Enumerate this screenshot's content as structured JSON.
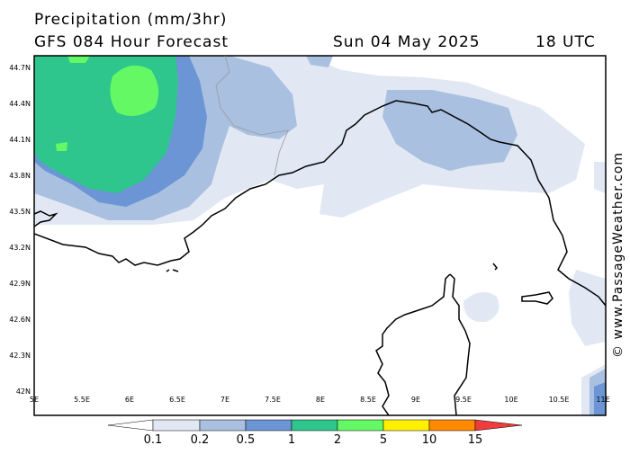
{
  "header": {
    "title": "Precipitation (mm/3hr)",
    "subtitle": "GFS 084 Hour Forecast",
    "date": "Sun 04 May 2025",
    "time": "18 UTC"
  },
  "axes": {
    "lat_ticks": [
      "44.7N",
      "44.4N",
      "44.1N",
      "43.8N",
      "43.5N",
      "43.2N",
      "42.9N",
      "42.6N",
      "42.3N",
      "42N"
    ],
    "lon_ticks": [
      "5E",
      "5.5E",
      "6E",
      "6.5E",
      "7E",
      "7.5E",
      "8E",
      "8.5E",
      "9E",
      "9.5E",
      "10E",
      "10.5E",
      "11E"
    ]
  },
  "credit": "© www.PassageWeather.com",
  "colorbar": {
    "labels": [
      "0.1",
      "0.2",
      "0.5",
      "1",
      "2",
      "5",
      "10",
      "15"
    ],
    "colors": [
      "#ffffff",
      "#e1e8f4",
      "#a9c0e0",
      "#6b95d4",
      "#2ec68c",
      "#64f964",
      "#fff000",
      "#ff8a00",
      "#f03c3c"
    ]
  },
  "palette": {
    "land_line": "#000000",
    "border": "#999999"
  }
}
